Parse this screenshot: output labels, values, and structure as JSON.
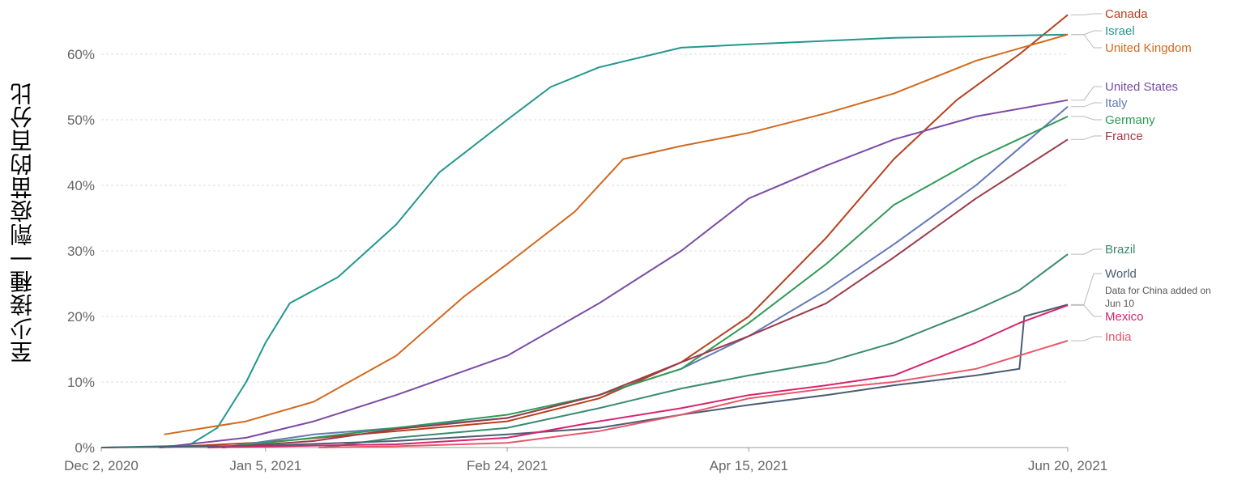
{
  "chart_data": {
    "type": "line",
    "title": "",
    "xlabel": "",
    "ylabel": "至少接種一劑疫苗的百分比",
    "x_range": [
      "2020-12-02",
      "2021-06-20"
    ],
    "ylim": [
      0,
      0.6
    ],
    "x_ticks": [
      {
        "date": "2020-12-02",
        "label": "Dec 2, 2020"
      },
      {
        "date": "2021-01-05",
        "label": "Jan 5, 2021"
      },
      {
        "date": "2021-02-24",
        "label": "Feb 24, 2021"
      },
      {
        "date": "2021-04-15",
        "label": "Apr 15, 2021"
      },
      {
        "date": "2021-06-20",
        "label": "Jun 20, 2021"
      }
    ],
    "y_ticks": [
      {
        "value": 0,
        "label": "0%"
      },
      {
        "value": 0.1,
        "label": "10%"
      },
      {
        "value": 0.2,
        "label": "20%"
      },
      {
        "value": 0.3,
        "label": "30%"
      },
      {
        "value": 0.4,
        "label": "40%"
      },
      {
        "value": 0.5,
        "label": "50%"
      },
      {
        "value": 0.6,
        "label": "60%"
      }
    ],
    "grid": true,
    "legend": "right, labels at line ends",
    "note": "Data for China added on Jun 10",
    "series": [
      {
        "name": "Canada",
        "color": "#b5401f",
        "points": [
          [
            "2020-12-14",
            0
          ],
          [
            "2021-01-05",
            0.008
          ],
          [
            "2021-02-01",
            0.025
          ],
          [
            "2021-02-24",
            0.04
          ],
          [
            "2021-03-15",
            0.075
          ],
          [
            "2021-04-01",
            0.13
          ],
          [
            "2021-04-15",
            0.2
          ],
          [
            "2021-05-01",
            0.32
          ],
          [
            "2021-05-15",
            0.44
          ],
          [
            "2021-05-28",
            0.53
          ],
          [
            "2021-06-10",
            0.6
          ],
          [
            "2021-06-20",
            0.66
          ]
        ]
      },
      {
        "name": "Israel",
        "color": "#23978e",
        "points": [
          [
            "2020-12-02",
            0
          ],
          [
            "2020-12-20",
            0.003
          ],
          [
            "2020-12-26",
            0.03
          ],
          [
            "2021-01-01",
            0.1
          ],
          [
            "2021-01-05",
            0.16
          ],
          [
            "2021-01-10",
            0.22
          ],
          [
            "2021-01-20",
            0.26
          ],
          [
            "2021-02-01",
            0.34
          ],
          [
            "2021-02-10",
            0.42
          ],
          [
            "2021-02-24",
            0.5
          ],
          [
            "2021-03-05",
            0.55
          ],
          [
            "2021-03-15",
            0.58
          ],
          [
            "2021-04-01",
            0.61
          ],
          [
            "2021-04-15",
            0.615
          ],
          [
            "2021-05-15",
            0.625
          ],
          [
            "2021-06-20",
            0.63
          ]
        ]
      },
      {
        "name": "United Kingdom",
        "color": "#d2691e",
        "points": [
          [
            "2020-12-15",
            0.02
          ],
          [
            "2021-01-01",
            0.04
          ],
          [
            "2021-01-15",
            0.07
          ],
          [
            "2021-02-01",
            0.14
          ],
          [
            "2021-02-15",
            0.23
          ],
          [
            "2021-02-24",
            0.28
          ],
          [
            "2021-03-10",
            0.36
          ],
          [
            "2021-03-20",
            0.44
          ],
          [
            "2021-04-01",
            0.46
          ],
          [
            "2021-04-15",
            0.48
          ],
          [
            "2021-05-01",
            0.51
          ],
          [
            "2021-05-15",
            0.54
          ],
          [
            "2021-06-01",
            0.59
          ],
          [
            "2021-06-20",
            0.63
          ]
        ]
      },
      {
        "name": "United States",
        "color": "#7b4ba6",
        "points": [
          [
            "2020-12-14",
            0
          ],
          [
            "2021-01-01",
            0.015
          ],
          [
            "2021-01-15",
            0.04
          ],
          [
            "2021-02-01",
            0.08
          ],
          [
            "2021-02-24",
            0.14
          ],
          [
            "2021-03-15",
            0.22
          ],
          [
            "2021-04-01",
            0.3
          ],
          [
            "2021-04-15",
            0.38
          ],
          [
            "2021-05-01",
            0.43
          ],
          [
            "2021-05-15",
            0.47
          ],
          [
            "2021-06-01",
            0.505
          ],
          [
            "2021-06-20",
            0.53
          ]
        ]
      },
      {
        "name": "Italy",
        "color": "#6278b8",
        "points": [
          [
            "2020-12-27",
            0
          ],
          [
            "2021-01-15",
            0.02
          ],
          [
            "2021-02-01",
            0.03
          ],
          [
            "2021-02-24",
            0.045
          ],
          [
            "2021-03-15",
            0.08
          ],
          [
            "2021-04-01",
            0.12
          ],
          [
            "2021-04-15",
            0.17
          ],
          [
            "2021-05-01",
            0.24
          ],
          [
            "2021-05-15",
            0.31
          ],
          [
            "2021-06-01",
            0.4
          ],
          [
            "2021-06-20",
            0.52
          ]
        ]
      },
      {
        "name": "Germany",
        "color": "#2e9a57",
        "points": [
          [
            "2020-12-27",
            0
          ],
          [
            "2021-01-15",
            0.015
          ],
          [
            "2021-02-01",
            0.03
          ],
          [
            "2021-02-24",
            0.05
          ],
          [
            "2021-03-15",
            0.08
          ],
          [
            "2021-04-01",
            0.12
          ],
          [
            "2021-04-15",
            0.19
          ],
          [
            "2021-05-01",
            0.28
          ],
          [
            "2021-05-15",
            0.37
          ],
          [
            "2021-06-01",
            0.44
          ],
          [
            "2021-06-20",
            0.505
          ]
        ]
      },
      {
        "name": "France",
        "color": "#9c3a49",
        "points": [
          [
            "2020-12-27",
            0
          ],
          [
            "2021-01-15",
            0.01
          ],
          [
            "2021-02-01",
            0.028
          ],
          [
            "2021-02-24",
            0.045
          ],
          [
            "2021-03-15",
            0.08
          ],
          [
            "2021-04-01",
            0.13
          ],
          [
            "2021-04-15",
            0.17
          ],
          [
            "2021-05-01",
            0.22
          ],
          [
            "2021-05-15",
            0.29
          ],
          [
            "2021-06-01",
            0.38
          ],
          [
            "2021-06-20",
            0.47
          ]
        ]
      },
      {
        "name": "Brazil",
        "color": "#3a8a6f",
        "points": [
          [
            "2021-01-17",
            0
          ],
          [
            "2021-02-01",
            0.015
          ],
          [
            "2021-02-24",
            0.03
          ],
          [
            "2021-03-15",
            0.06
          ],
          [
            "2021-04-01",
            0.09
          ],
          [
            "2021-04-15",
            0.11
          ],
          [
            "2021-05-01",
            0.13
          ],
          [
            "2021-05-15",
            0.16
          ],
          [
            "2021-06-01",
            0.21
          ],
          [
            "2021-06-10",
            0.24
          ],
          [
            "2021-06-20",
            0.295
          ]
        ]
      },
      {
        "name": "World",
        "color": "#4a5d73",
        "points": [
          [
            "2020-12-02",
            0
          ],
          [
            "2021-01-05",
            0.003
          ],
          [
            "2021-02-01",
            0.01
          ],
          [
            "2021-02-24",
            0.02
          ],
          [
            "2021-03-15",
            0.03
          ],
          [
            "2021-04-01",
            0.05
          ],
          [
            "2021-04-15",
            0.065
          ],
          [
            "2021-05-01",
            0.08
          ],
          [
            "2021-05-15",
            0.095
          ],
          [
            "2021-06-01",
            0.11
          ],
          [
            "2021-06-10",
            0.12
          ],
          [
            "2021-06-11",
            0.2
          ],
          [
            "2021-06-20",
            0.218
          ]
        ]
      },
      {
        "name": "Mexico",
        "color": "#d6246e",
        "points": [
          [
            "2020-12-24",
            0
          ],
          [
            "2021-01-15",
            0.003
          ],
          [
            "2021-02-01",
            0.005
          ],
          [
            "2021-02-24",
            0.015
          ],
          [
            "2021-03-15",
            0.04
          ],
          [
            "2021-04-01",
            0.06
          ],
          [
            "2021-04-15",
            0.08
          ],
          [
            "2021-05-01",
            0.095
          ],
          [
            "2021-05-15",
            0.11
          ],
          [
            "2021-06-01",
            0.16
          ],
          [
            "2021-06-10",
            0.19
          ],
          [
            "2021-06-20",
            0.217
          ]
        ]
      },
      {
        "name": "India",
        "color": "#e8576b",
        "points": [
          [
            "2021-01-16",
            0
          ],
          [
            "2021-02-01",
            0.002
          ],
          [
            "2021-02-24",
            0.007
          ],
          [
            "2021-03-15",
            0.025
          ],
          [
            "2021-04-01",
            0.05
          ],
          [
            "2021-04-15",
            0.075
          ],
          [
            "2021-05-01",
            0.09
          ],
          [
            "2021-05-15",
            0.1
          ],
          [
            "2021-06-01",
            0.12
          ],
          [
            "2021-06-20",
            0.163
          ]
        ]
      }
    ]
  }
}
